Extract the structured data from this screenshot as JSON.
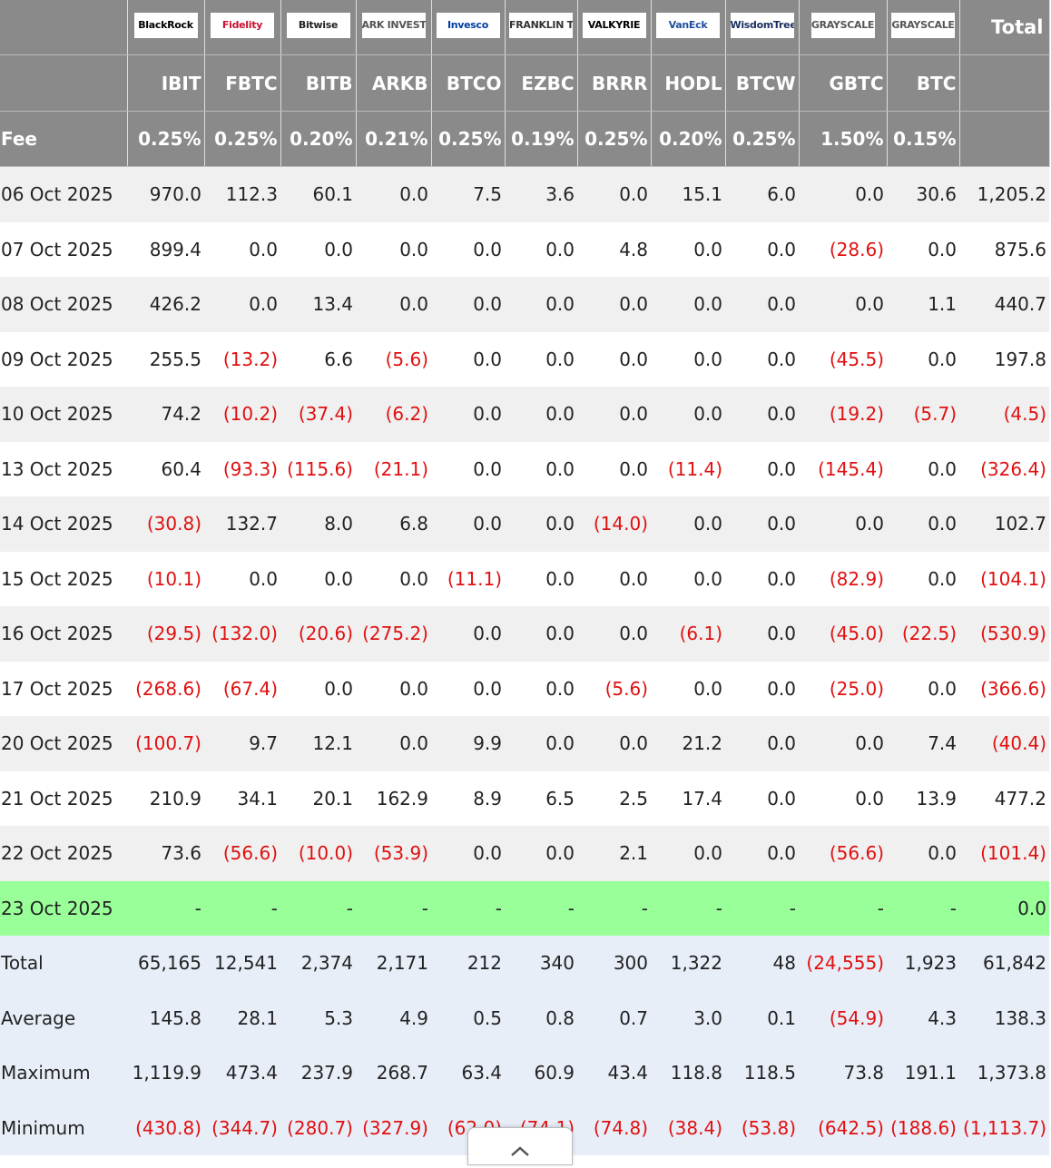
{
  "header": {
    "brands": [
      "BlackRock",
      "Fidelity",
      "Bitwise",
      "ARK INVEST",
      "Invesco",
      "FRANKLIN TEMPLETON",
      "VALKYRIE",
      "VanEck",
      "WisdomTree",
      "GRAYSCALE",
      "GRAYSCALE"
    ],
    "total": "Total",
    "tickers": [
      "IBIT",
      "FBTC",
      "BITB",
      "ARKB",
      "BTCO",
      "EZBC",
      "BRRR",
      "HODL",
      "BTCW",
      "GBTC",
      "BTC"
    ],
    "fee_label": "Fee",
    "fees": [
      "0.25%",
      "0.25%",
      "0.20%",
      "0.21%",
      "0.25%",
      "0.19%",
      "0.25%",
      "0.20%",
      "0.25%",
      "1.50%",
      "0.15%"
    ]
  },
  "rows": [
    {
      "date": "06 Oct 2025",
      "values": [
        "970.0",
        "112.3",
        "60.1",
        "0.0",
        "7.5",
        "3.6",
        "0.0",
        "15.1",
        "6.0",
        "0.0",
        "30.6",
        "1,205.2"
      ]
    },
    {
      "date": "07 Oct 2025",
      "values": [
        "899.4",
        "0.0",
        "0.0",
        "0.0",
        "0.0",
        "0.0",
        "4.8",
        "0.0",
        "0.0",
        "(28.6)",
        "0.0",
        "875.6"
      ]
    },
    {
      "date": "08 Oct 2025",
      "values": [
        "426.2",
        "0.0",
        "13.4",
        "0.0",
        "0.0",
        "0.0",
        "0.0",
        "0.0",
        "0.0",
        "0.0",
        "1.1",
        "440.7"
      ]
    },
    {
      "date": "09 Oct 2025",
      "values": [
        "255.5",
        "(13.2)",
        "6.6",
        "(5.6)",
        "0.0",
        "0.0",
        "0.0",
        "0.0",
        "0.0",
        "(45.5)",
        "0.0",
        "197.8"
      ]
    },
    {
      "date": "10 Oct 2025",
      "values": [
        "74.2",
        "(10.2)",
        "(37.4)",
        "(6.2)",
        "0.0",
        "0.0",
        "0.0",
        "0.0",
        "0.0",
        "(19.2)",
        "(5.7)",
        "(4.5)"
      ]
    },
    {
      "date": "13 Oct 2025",
      "values": [
        "60.4",
        "(93.3)",
        "(115.6)",
        "(21.1)",
        "0.0",
        "0.0",
        "0.0",
        "(11.4)",
        "0.0",
        "(145.4)",
        "0.0",
        "(326.4)"
      ]
    },
    {
      "date": "14 Oct 2025",
      "values": [
        "(30.8)",
        "132.7",
        "8.0",
        "6.8",
        "0.0",
        "0.0",
        "(14.0)",
        "0.0",
        "0.0",
        "0.0",
        "0.0",
        "102.7"
      ]
    },
    {
      "date": "15 Oct 2025",
      "values": [
        "(10.1)",
        "0.0",
        "0.0",
        "0.0",
        "(11.1)",
        "0.0",
        "0.0",
        "0.0",
        "0.0",
        "(82.9)",
        "0.0",
        "(104.1)"
      ]
    },
    {
      "date": "16 Oct 2025",
      "values": [
        "(29.5)",
        "(132.0)",
        "(20.6)",
        "(275.2)",
        "0.0",
        "0.0",
        "0.0",
        "(6.1)",
        "0.0",
        "(45.0)",
        "(22.5)",
        "(530.9)"
      ]
    },
    {
      "date": "17 Oct 2025",
      "values": [
        "(268.6)",
        "(67.4)",
        "0.0",
        "0.0",
        "0.0",
        "0.0",
        "(5.6)",
        "0.0",
        "0.0",
        "(25.0)",
        "0.0",
        "(366.6)"
      ]
    },
    {
      "date": "20 Oct 2025",
      "values": [
        "(100.7)",
        "9.7",
        "12.1",
        "0.0",
        "9.9",
        "0.0",
        "0.0",
        "21.2",
        "0.0",
        "0.0",
        "7.4",
        "(40.4)"
      ]
    },
    {
      "date": "21 Oct 2025",
      "values": [
        "210.9",
        "34.1",
        "20.1",
        "162.9",
        "8.9",
        "6.5",
        "2.5",
        "17.4",
        "0.0",
        "0.0",
        "13.9",
        "477.2"
      ]
    },
    {
      "date": "22 Oct 2025",
      "values": [
        "73.6",
        "(56.6)",
        "(10.0)",
        "(53.9)",
        "0.0",
        "0.0",
        "2.1",
        "0.0",
        "0.0",
        "(56.6)",
        "0.0",
        "(101.4)"
      ]
    },
    {
      "date": "23 Oct 2025",
      "values": [
        "-",
        "-",
        "-",
        "-",
        "-",
        "-",
        "-",
        "-",
        "-",
        "-",
        "-",
        "0.0"
      ]
    }
  ],
  "summary": [
    {
      "label": "Total",
      "values": [
        "65,165",
        "12,541",
        "2,374",
        "2,171",
        "212",
        "340",
        "300",
        "1,322",
        "48",
        "(24,555)",
        "1,923",
        "61,842"
      ]
    },
    {
      "label": "Average",
      "values": [
        "145.8",
        "28.1",
        "5.3",
        "4.9",
        "0.5",
        "0.8",
        "0.7",
        "3.0",
        "0.1",
        "(54.9)",
        "4.3",
        "138.3"
      ]
    },
    {
      "label": "Maximum",
      "values": [
        "1,119.9",
        "473.4",
        "237.9",
        "268.7",
        "63.4",
        "60.9",
        "43.4",
        "118.8",
        "118.5",
        "73.8",
        "191.1",
        "1,373.8"
      ]
    },
    {
      "label": "Minimum",
      "values": [
        "(430.8)",
        "(344.7)",
        "(280.7)",
        "(327.9)",
        "(62.0)",
        "(74.1)",
        "(74.8)",
        "(38.4)",
        "(53.8)",
        "(642.5)",
        "(188.6)",
        "(1,113.7)"
      ]
    }
  ]
}
